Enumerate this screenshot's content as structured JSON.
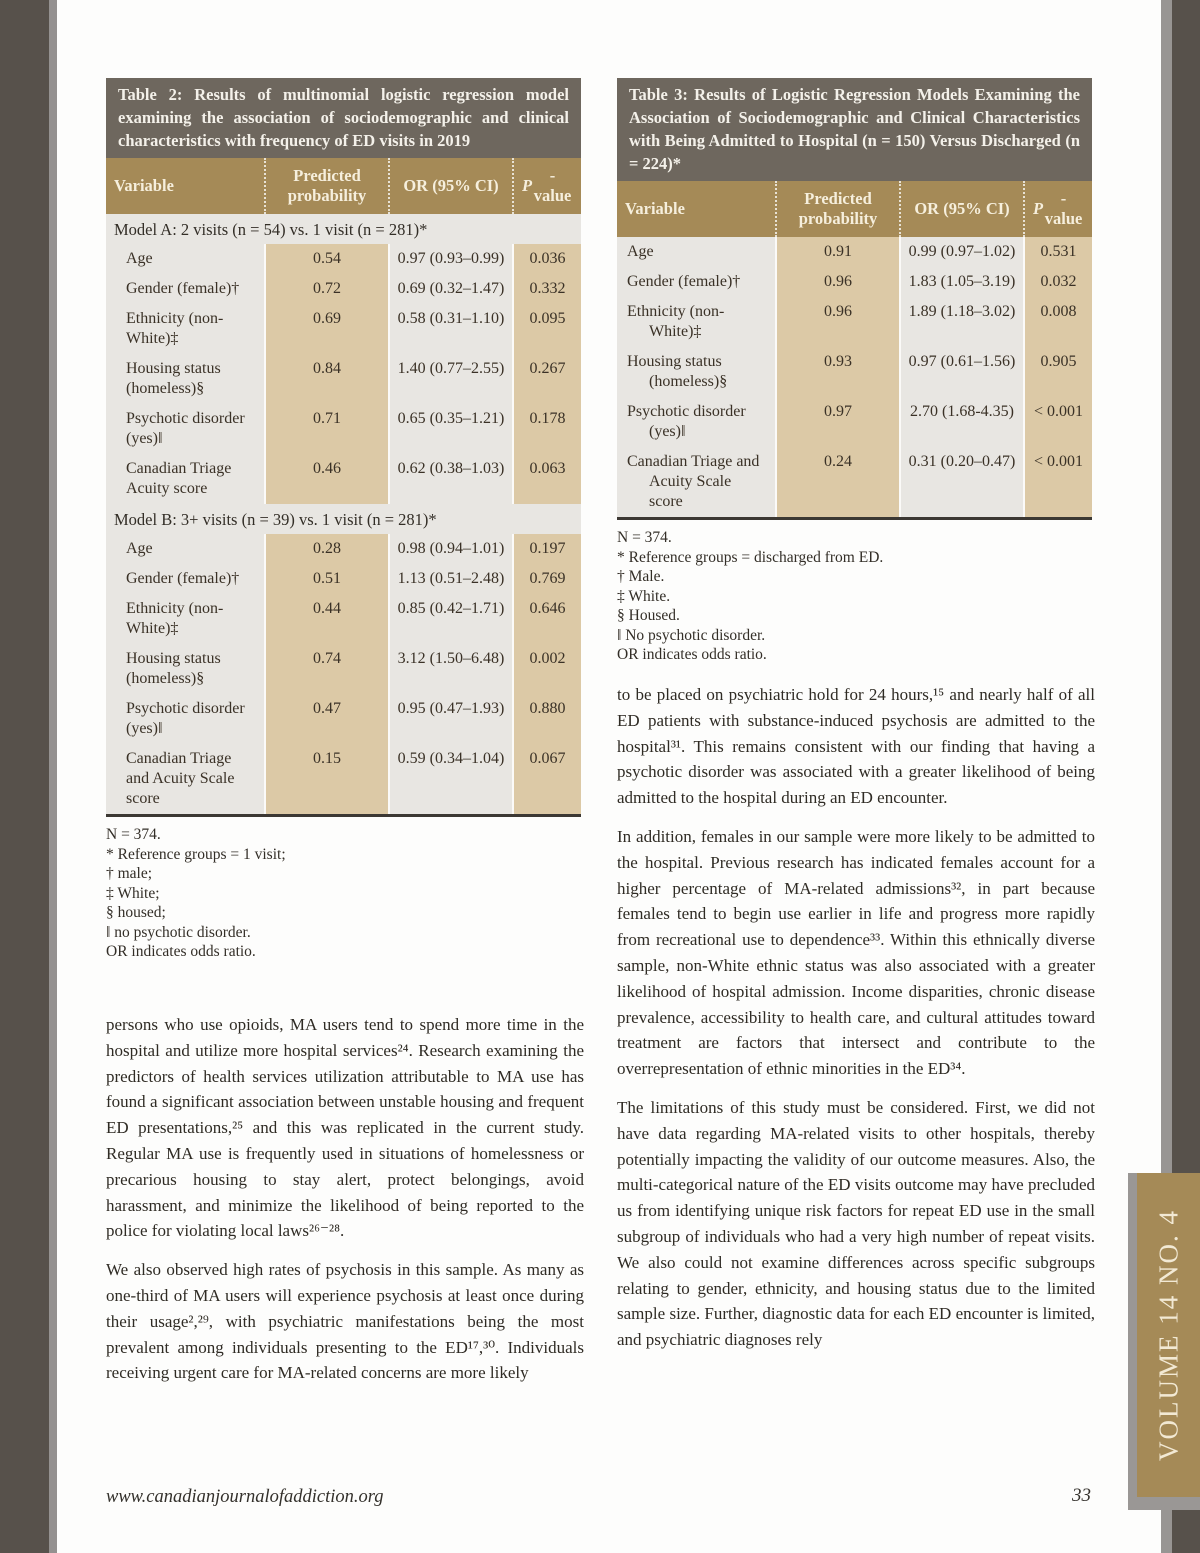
{
  "page": {
    "footer_url": "www.canadianjournalofaddiction.org",
    "page_number": "33",
    "volume_label": "VOLUME 14 NO. 4"
  },
  "colors": {
    "table_caption_bg": "#6e675e",
    "table_header_bg": "#a58a57",
    "beige_column_bg": "#dcc9a6",
    "table_body_bg": "#e8e6e2",
    "edge_strip_dark": "#57514b",
    "edge_strip_gray": "#949190",
    "volume_tab_bg": "#a58a57",
    "text_color": "#332e27"
  },
  "table2": {
    "caption": "Table 2: Results of multinomial logistic regression model examining the association of sociodemographic and clinical characteristics with frequency of ED visits in 2019",
    "columns": {
      "c0": "Variable",
      "c1": "Predicted probability",
      "c2": "OR (95% CI)",
      "p_italic": "P",
      "p_rest": "-value"
    },
    "sections": [
      {
        "title": "Model A: 2 visits (n = 54) vs. 1 visit (n = 281)*",
        "rows": [
          {
            "variable": "Age",
            "predicted_probability": "0.54",
            "or_ci": "0.97 (0.93–0.99)",
            "p_value": "0.036"
          },
          {
            "variable": "Gender (female)†",
            "predicted_probability": "0.72",
            "or_ci": "0.69 (0.32–1.47)",
            "p_value": "0.332"
          },
          {
            "variable": "Ethnicity (non-White)‡",
            "predicted_probability": "0.69",
            "or_ci": "0.58 (0.31–1.10)",
            "p_value": "0.095"
          },
          {
            "variable": "Housing status (homeless)§",
            "predicted_probability": "0.84",
            "or_ci": "1.40 (0.77–2.55)",
            "p_value": "0.267"
          },
          {
            "variable": "Psychotic disorder (yes)‖",
            "predicted_probability": "0.71",
            "or_ci": "0.65 (0.35–1.21)",
            "p_value": "0.178"
          },
          {
            "variable": "Canadian Triage Acuity score",
            "predicted_probability": "0.46",
            "or_ci": "0.62 (0.38–1.03)",
            "p_value": "0.063"
          }
        ]
      },
      {
        "title": "Model B: 3+ visits (n = 39) vs. 1 visit (n = 281)*",
        "rows": [
          {
            "variable": "Age",
            "predicted_probability": "0.28",
            "or_ci": "0.98 (0.94–1.01)",
            "p_value": "0.197"
          },
          {
            "variable": "Gender (female)†",
            "predicted_probability": "0.51",
            "or_ci": "1.13 (0.51–2.48)",
            "p_value": "0.769"
          },
          {
            "variable": "Ethnicity (non-White)‡",
            "predicted_probability": "0.44",
            "or_ci": "0.85 (0.42–1.71)",
            "p_value": "0.646"
          },
          {
            "variable": "Housing status (homeless)§",
            "predicted_probability": "0.74",
            "or_ci": "3.12 (1.50–6.48)",
            "p_value": "0.002"
          },
          {
            "variable": "Psychotic disorder (yes)‖",
            "predicted_probability": "0.47",
            "or_ci": "0.95 (0.47–1.93)",
            "p_value": "0.880"
          },
          {
            "variable": "Canadian Triage and Acuity Scale score",
            "predicted_probability": "0.15",
            "or_ci": "0.59 (0.34–1.04)",
            "p_value": "0.067"
          }
        ]
      }
    ],
    "footnotes": [
      "N = 374.",
      "* Reference groups = 1 visit;",
      "† male;",
      "‡ White;",
      "§ housed;",
      "‖ no psychotic disorder.",
      "OR indicates odds ratio."
    ]
  },
  "table3": {
    "caption": "Table 3: Results of Logistic Regression Models Examining the Association of Sociodemographic and Clinical Characteristics with Being Admitted to Hospital (n = 150) Versus Discharged (n = 224)*",
    "columns": {
      "c0": "Variable",
      "c1": "Predicted probability",
      "c2": "OR (95% CI)",
      "p_italic": "P",
      "p_rest": "-value"
    },
    "rows": [
      {
        "variable": "Age",
        "predicted_probability": "0.91",
        "or_ci": "0.99 (0.97–1.02)",
        "p_value": "0.531"
      },
      {
        "variable": "Gender (female)†",
        "predicted_probability": "0.96",
        "or_ci": "1.83 (1.05–3.19)",
        "p_value": "0.032"
      },
      {
        "variable": "Ethnicity (non-White)‡",
        "predicted_probability": "0.96",
        "or_ci": "1.89 (1.18–3.02)",
        "p_value": "0.008"
      },
      {
        "variable": "Housing status (homeless)§",
        "predicted_probability": "0.93",
        "or_ci": "0.97 (0.61–1.56)",
        "p_value": "0.905"
      },
      {
        "variable": "Psychotic disorder (yes)‖",
        "predicted_probability": "0.97",
        "or_ci": "2.70 (1.68-4.35)",
        "p_value": "< 0.001"
      },
      {
        "variable": "Canadian Triage and Acuity Scale score",
        "predicted_probability": "0.24",
        "or_ci": "0.31 (0.20–0.47)",
        "p_value": "< 0.001"
      }
    ],
    "footnotes": [
      "N = 374.",
      "* Reference groups = discharged from ED.",
      "† Male.",
      "‡ White.",
      "§ Housed.",
      "‖ No psychotic disorder.",
      "OR indicates odds ratio."
    ]
  },
  "left_column": {
    "paragraphs": [
      "persons who use opioids, MA users tend to spend more time in the hospital and utilize more hospital services²⁴. Research examining the predictors of health services utilization attributable to MA use has found a significant association between unstable housing and frequent ED presentations,²⁵ and this was replicated in the current study. Regular MA use is frequently used in situations of homelessness or precarious housing to stay alert, protect belongings, avoid harassment, and minimize the likelihood of being reported to the police for violating local laws²⁶⁻²⁸.",
      "We also observed high rates of psychosis in this sample. As many as one-third of MA users will experience psychosis at least once during their usage²,²⁹, with psychiatric manifestations being the most prevalent among individuals presenting to the ED¹⁷,³⁰. Individuals receiving urgent care for MA-related concerns are more likely"
    ]
  },
  "right_column": {
    "paragraphs": [
      "to be placed on psychiatric hold for 24 hours,¹⁵ and nearly half of all ED patients with substance-induced psychosis are admitted to the hospital³¹. This remains consistent with our finding that having a psychotic disorder was associated with a greater likelihood of being admitted to the hospital during an ED encounter.",
      "In addition, females in our sample were more likely to be admitted to the hospital. Previous research has indicated females account for a higher percentage of MA-related admissions³², in part because females tend to begin use earlier in life and progress more rapidly from recreational use to dependence³³. Within this ethnically diverse sample, non-White ethnic status was also associated with a greater likelihood of hospital admission. Income disparities, chronic disease prevalence, accessibility to health care, and cultural attitudes toward treatment are factors that intersect and contribute to the overrepresentation of ethnic minorities in the ED³⁴.",
      "The limitations of this study must be considered. First, we did not have data regarding MA-related visits to other hospitals, thereby potentially impacting the validity of our outcome measures. Also, the multi-categorical nature of the ED visits outcome may have precluded us from identifying unique risk factors for repeat ED use in the small subgroup of individuals who had a very high number of repeat visits. We also could not examine differences across specific subgroups relating to gender, ethnicity, and housing status due to the limited sample size. Further, diagnostic data for each ED encounter is limited, and psychiatric diagnoses rely"
    ]
  }
}
